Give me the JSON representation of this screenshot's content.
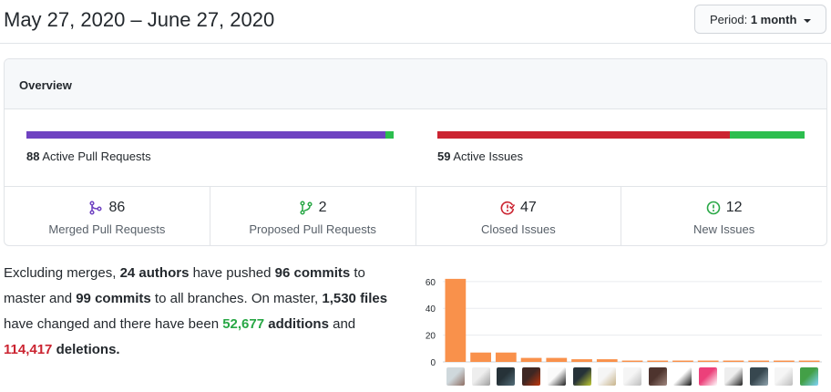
{
  "header": {
    "date_range": "May 27, 2020 – June 27, 2020",
    "period_label": "Period:",
    "period_value": "1 month"
  },
  "overview": {
    "title": "Overview",
    "pull_requests": {
      "count": "88",
      "label": "Active Pull Requests",
      "merged_fraction": 0.977,
      "open_fraction": 0.023,
      "merged_color": "#6f42c1",
      "open_color": "#2cbe4e"
    },
    "issues": {
      "count": "59",
      "label": "Active Issues",
      "closed_fraction": 0.797,
      "new_fraction": 0.203,
      "closed_color": "#cb2431",
      "new_color": "#2cbe4e"
    },
    "stats": [
      {
        "icon": "git-merge-icon",
        "value": "86",
        "label": "Merged Pull Requests",
        "color": "#6f42c1"
      },
      {
        "icon": "git-pull-request-icon",
        "value": "2",
        "label": "Proposed Pull Requests",
        "color": "#28a745"
      },
      {
        "icon": "issue-closed-icon",
        "value": "47",
        "label": "Closed Issues",
        "color": "#cb2431"
      },
      {
        "icon": "issue-opened-icon",
        "value": "12",
        "label": "New Issues",
        "color": "#28a745"
      }
    ]
  },
  "summary": {
    "t1": "Excluding merges, ",
    "authors": "24 authors",
    "t2": " have pushed ",
    "commits_master": "96 commits",
    "t3": " to master and ",
    "commits_all": "99 commits",
    "t4": " to all branches. On master, ",
    "files": "1,530 files",
    "t5": " have changed and there have been ",
    "additions": "52,677",
    "t6": " additions",
    "t7": " and ",
    "deletions": "114,417",
    "t8": " deletions."
  },
  "chart_data": {
    "type": "bar",
    "y_ticks": [
      "60",
      "40",
      "20",
      "0"
    ],
    "ylim": [
      0,
      66
    ],
    "values": [
      62,
      7,
      7,
      3,
      3,
      2,
      2,
      1,
      1,
      1,
      1,
      1,
      1,
      1,
      1
    ],
    "bar_color": "#f9914b",
    "grid": true
  },
  "avatars": [
    {
      "name": "avatar-1",
      "colors": [
        "#cfd8dc",
        "#8d6e63"
      ]
    },
    {
      "name": "avatar-2",
      "colors": [
        "#eeeeee",
        "#9e9e9e"
      ]
    },
    {
      "name": "avatar-3",
      "colors": [
        "#263238",
        "#546e7a"
      ]
    },
    {
      "name": "avatar-4",
      "colors": [
        "#3e2723",
        "#bf360c"
      ]
    },
    {
      "name": "avatar-5",
      "colors": [
        "#fafafa",
        "#212121"
      ]
    },
    {
      "name": "avatar-6",
      "colors": [
        "#263238",
        "#c0ca33"
      ]
    },
    {
      "name": "avatar-7",
      "colors": [
        "#f5f5f5",
        "#c8b38a"
      ]
    },
    {
      "name": "avatar-8",
      "colors": [
        "#f5f5f5",
        "#bdbdbd"
      ]
    },
    {
      "name": "avatar-9",
      "colors": [
        "#4e342e",
        "#a1887f"
      ]
    },
    {
      "name": "avatar-10",
      "colors": [
        "#ffffff",
        "#111111"
      ]
    },
    {
      "name": "avatar-11",
      "colors": [
        "#ec407a",
        "#ffffff"
      ]
    },
    {
      "name": "avatar-12",
      "colors": [
        "#eeeeee",
        "#212121"
      ]
    },
    {
      "name": "avatar-13",
      "colors": [
        "#37474f",
        "#90a4ae"
      ]
    },
    {
      "name": "avatar-14",
      "colors": [
        "#f5f5f5",
        "#bdbdbd"
      ]
    },
    {
      "name": "avatar-15",
      "colors": [
        "#43a047",
        "#81d4fa"
      ]
    }
  ]
}
